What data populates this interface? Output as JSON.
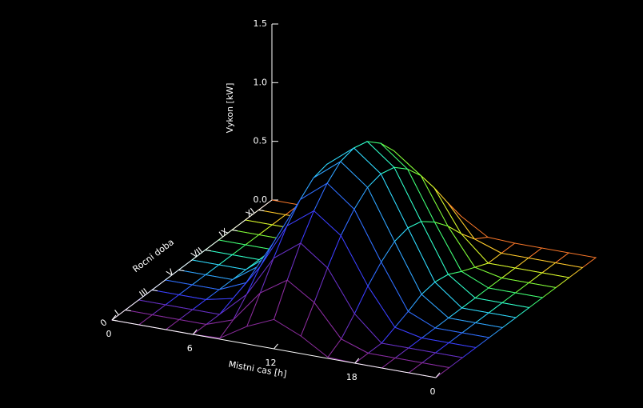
{
  "chart_data": {
    "type": "surface",
    "x_label": "Mistni cas [h]",
    "y_label": "Rocni doba",
    "z_label": "Vykon [kW]",
    "x": [
      0,
      2,
      4,
      6,
      8,
      10,
      12,
      14,
      16,
      18,
      20,
      22,
      24
    ],
    "y": [
      0,
      1,
      2,
      3,
      4,
      5,
      6,
      7,
      8,
      9,
      10,
      11,
      12
    ],
    "z": [
      [
        0,
        0,
        0,
        0,
        0.01,
        0.15,
        0.25,
        0.15,
        0.01,
        0,
        0,
        0,
        0
      ],
      [
        0,
        0,
        0,
        0,
        0.08,
        0.35,
        0.5,
        0.35,
        0.08,
        0,
        0,
        0,
        0
      ],
      [
        0,
        0,
        0,
        0,
        0.21,
        0.56,
        0.73,
        0.56,
        0.21,
        0,
        0,
        0,
        0
      ],
      [
        0,
        0,
        0,
        0.05,
        0.36,
        0.75,
        0.92,
        0.75,
        0.36,
        0.05,
        0,
        0,
        0
      ],
      [
        0,
        0,
        0,
        0.1,
        0.48,
        0.89,
        1.07,
        0.89,
        0.48,
        0.1,
        0,
        0,
        0
      ],
      [
        0,
        0,
        0,
        0.16,
        0.57,
        0.99,
        1.17,
        0.99,
        0.57,
        0.16,
        0,
        0,
        0
      ],
      [
        0,
        0,
        0,
        0.18,
        0.6,
        1.02,
        1.2,
        1.02,
        0.6,
        0.18,
        0,
        0,
        0
      ],
      [
        0,
        0,
        0,
        0.16,
        0.57,
        0.99,
        1.17,
        0.99,
        0.57,
        0.16,
        0,
        0,
        0
      ],
      [
        0,
        0,
        0,
        0.1,
        0.48,
        0.89,
        1.07,
        0.89,
        0.48,
        0.1,
        0,
        0,
        0
      ],
      [
        0,
        0,
        0,
        0.05,
        0.36,
        0.75,
        0.92,
        0.75,
        0.36,
        0.05,
        0,
        0,
        0
      ],
      [
        0,
        0,
        0,
        0,
        0.21,
        0.56,
        0.73,
        0.56,
        0.21,
        0,
        0,
        0,
        0
      ],
      [
        0,
        0,
        0,
        0,
        0.08,
        0.35,
        0.5,
        0.35,
        0.08,
        0,
        0,
        0,
        0
      ],
      [
        0,
        0,
        0,
        0,
        0.01,
        0.15,
        0.25,
        0.15,
        0.01,
        0,
        0,
        0,
        0
      ]
    ],
    "colors": [
      "#8a2b9c",
      "#6a2fc0",
      "#3c3cff",
      "#2f6bff",
      "#2fa0ff",
      "#2fd6ff",
      "#2fffd0",
      "#3dff7a",
      "#7aff3a",
      "#d8ff2a",
      "#ffd02a",
      "#ff7a2a",
      "#ff3030"
    ],
    "xlim": [
      0,
      24
    ],
    "ylim": [
      0,
      12
    ],
    "zlim": [
      0,
      1.5
    ],
    "xticks": [
      0,
      6,
      12,
      18,
      {
        "value": 24,
        "label": "0"
      }
    ],
    "yticks": [
      0,
      {
        "value": 1,
        "label": "I"
      },
      {
        "value": 3,
        "label": "III"
      },
      {
        "value": 5,
        "label": "V"
      },
      {
        "value": 7,
        "label": "VII"
      },
      {
        "value": 9,
        "label": "IX"
      },
      {
        "value": 11,
        "label": "XI"
      }
    ],
    "zticks": [
      {
        "value": 0,
        "label": "0.0"
      },
      0.5,
      {
        "value": 1,
        "label": "1.0"
      },
      1.5
    ]
  }
}
